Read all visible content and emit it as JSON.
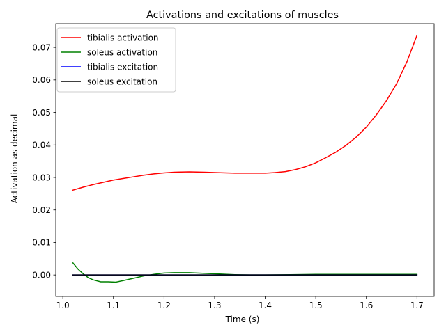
{
  "chart_data": {
    "type": "line",
    "title": "Activations and excitations of muscles",
    "xlabel": "Time (s)",
    "ylabel": "Activation as decimal",
    "xlim": [
      0.986,
      1.734
    ],
    "ylim": [
      -0.0066,
      0.0773
    ],
    "xticks": [
      1.0,
      1.1,
      1.2,
      1.3,
      1.4,
      1.5,
      1.6,
      1.7
    ],
    "xtick_labels": [
      "1.0",
      "1.1",
      "1.2",
      "1.3",
      "1.4",
      "1.5",
      "1.6",
      "1.7"
    ],
    "yticks": [
      0.0,
      0.01,
      0.02,
      0.03,
      0.04,
      0.05,
      0.06,
      0.07
    ],
    "ytick_labels": [
      "0.00",
      "0.01",
      "0.02",
      "0.03",
      "0.04",
      "0.05",
      "0.06",
      "0.07"
    ],
    "grid": false,
    "legend": "upper left",
    "series": [
      {
        "name": "tibialis activation",
        "color": "#ff0000",
        "x": [
          1.02,
          1.04,
          1.06,
          1.08,
          1.1,
          1.12,
          1.14,
          1.16,
          1.18,
          1.2,
          1.22,
          1.25,
          1.28,
          1.3,
          1.34,
          1.38,
          1.4,
          1.42,
          1.44,
          1.46,
          1.48,
          1.5,
          1.52,
          1.54,
          1.56,
          1.58,
          1.6,
          1.62,
          1.64,
          1.66,
          1.68,
          1.7
        ],
        "y": [
          0.0261,
          0.027,
          0.0278,
          0.0285,
          0.0292,
          0.0297,
          0.0302,
          0.0307,
          0.0311,
          0.0314,
          0.0316,
          0.0317,
          0.0316,
          0.0315,
          0.0313,
          0.0313,
          0.0313,
          0.0315,
          0.0318,
          0.0324,
          0.0333,
          0.0345,
          0.0361,
          0.0378,
          0.0399,
          0.0424,
          0.0455,
          0.0493,
          0.0537,
          0.0589,
          0.0655,
          0.0737
        ]
      },
      {
        "name": "soleus activation",
        "color": "#008000",
        "x": [
          1.02,
          1.03,
          1.04,
          1.05,
          1.06,
          1.075,
          1.09,
          1.105,
          1.12,
          1.14,
          1.16,
          1.18,
          1.2,
          1.22,
          1.25,
          1.28,
          1.31,
          1.34,
          1.37,
          1.4,
          1.45,
          1.5,
          1.55,
          1.6,
          1.65,
          1.7
        ],
        "y": [
          0.0037,
          0.0018,
          0.0004,
          -0.0008,
          -0.0015,
          -0.0021,
          -0.0021,
          -0.0022,
          -0.0017,
          -0.001,
          -0.0003,
          0.0002,
          0.0006,
          0.0007,
          0.0007,
          0.0005,
          0.0003,
          0.0001,
          0.0,
          0.0,
          0.0001,
          0.0002,
          0.0002,
          0.0002,
          0.0002,
          0.0002
        ]
      },
      {
        "name": "tibialis excitation",
        "color": "#0000ff",
        "x": [
          1.02,
          1.7
        ],
        "y": [
          0.0,
          0.0
        ]
      },
      {
        "name": "soleus excitation",
        "color": "#000000",
        "x": [
          1.02,
          1.7
        ],
        "y": [
          0.0,
          0.0
        ]
      }
    ]
  }
}
